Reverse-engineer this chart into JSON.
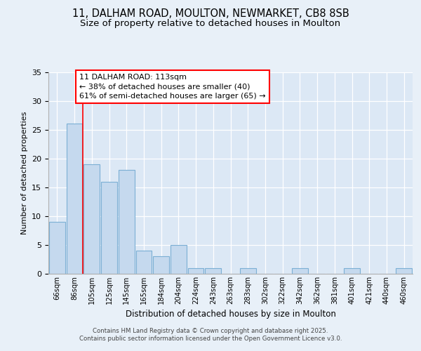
{
  "title1": "11, DALHAM ROAD, MOULTON, NEWMARKET, CB8 8SB",
  "title2": "Size of property relative to detached houses in Moulton",
  "xlabel": "Distribution of detached houses by size in Moulton",
  "ylabel": "Number of detached properties",
  "categories": [
    "66sqm",
    "86sqm",
    "105sqm",
    "125sqm",
    "145sqm",
    "165sqm",
    "184sqm",
    "204sqm",
    "224sqm",
    "243sqm",
    "263sqm",
    "283sqm",
    "302sqm",
    "322sqm",
    "342sqm",
    "362sqm",
    "381sqm",
    "401sqm",
    "421sqm",
    "440sqm",
    "460sqm"
  ],
  "values": [
    9,
    26,
    19,
    16,
    18,
    4,
    3,
    5,
    1,
    1,
    0,
    1,
    0,
    0,
    1,
    0,
    0,
    1,
    0,
    0,
    1
  ],
  "bar_color": "#c5d9ee",
  "bar_edge_color": "#7bafd4",
  "red_line_x": 2,
  "annotation_title": "11 DALHAM ROAD: 113sqm",
  "annotation_line1": "← 38% of detached houses are smaller (40)",
  "annotation_line2": "61% of semi-detached houses are larger (65) →",
  "ylim": [
    0,
    35
  ],
  "yticks": [
    0,
    5,
    10,
    15,
    20,
    25,
    30,
    35
  ],
  "footer1": "Contains HM Land Registry data © Crown copyright and database right 2025.",
  "footer2": "Contains public sector information licensed under the Open Government Licence v3.0.",
  "bg_color": "#e8f0f8",
  "plot_bg_color": "#dce8f5",
  "title_fontsize": 10.5,
  "subtitle_fontsize": 9.5
}
